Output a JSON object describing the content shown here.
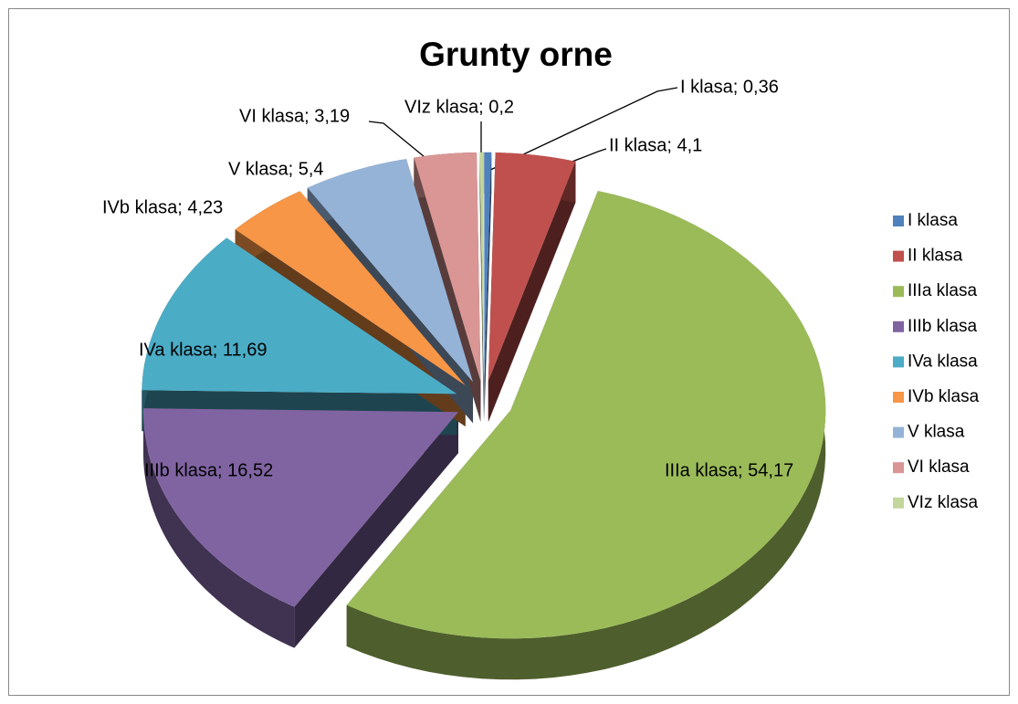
{
  "chart_data": {
    "type": "pie",
    "title": "Grunty orne",
    "categories": [
      "I klasa",
      "II klasa",
      "IIIa klasa",
      "IIIb klasa",
      "IVa klasa",
      "IVb klasa",
      "V klasa",
      "VI klasa",
      "VIz klasa"
    ],
    "values": [
      0.36,
      4.1,
      54.17,
      16.52,
      11.69,
      4.23,
      5.4,
      3.19,
      0.2
    ],
    "value_labels": [
      "I klasa; 0,36",
      "II klasa; 4,1",
      "IIIa klasa; 54,17",
      "IIIb klasa; 16,52",
      "IVa klasa; 11,69",
      "IVb klasa; 4,23",
      "V klasa; 5,4",
      "VI klasa; 3,19",
      "VIz klasa; 0,2"
    ],
    "colors": [
      "#4f81bd",
      "#c0504d",
      "#9bbb59",
      "#8064a2",
      "#4bacc6",
      "#f79646",
      "#95b3d7",
      "#d99694",
      "#c3d69b"
    ],
    "exploded": true,
    "three_d": true,
    "legend": "right"
  }
}
